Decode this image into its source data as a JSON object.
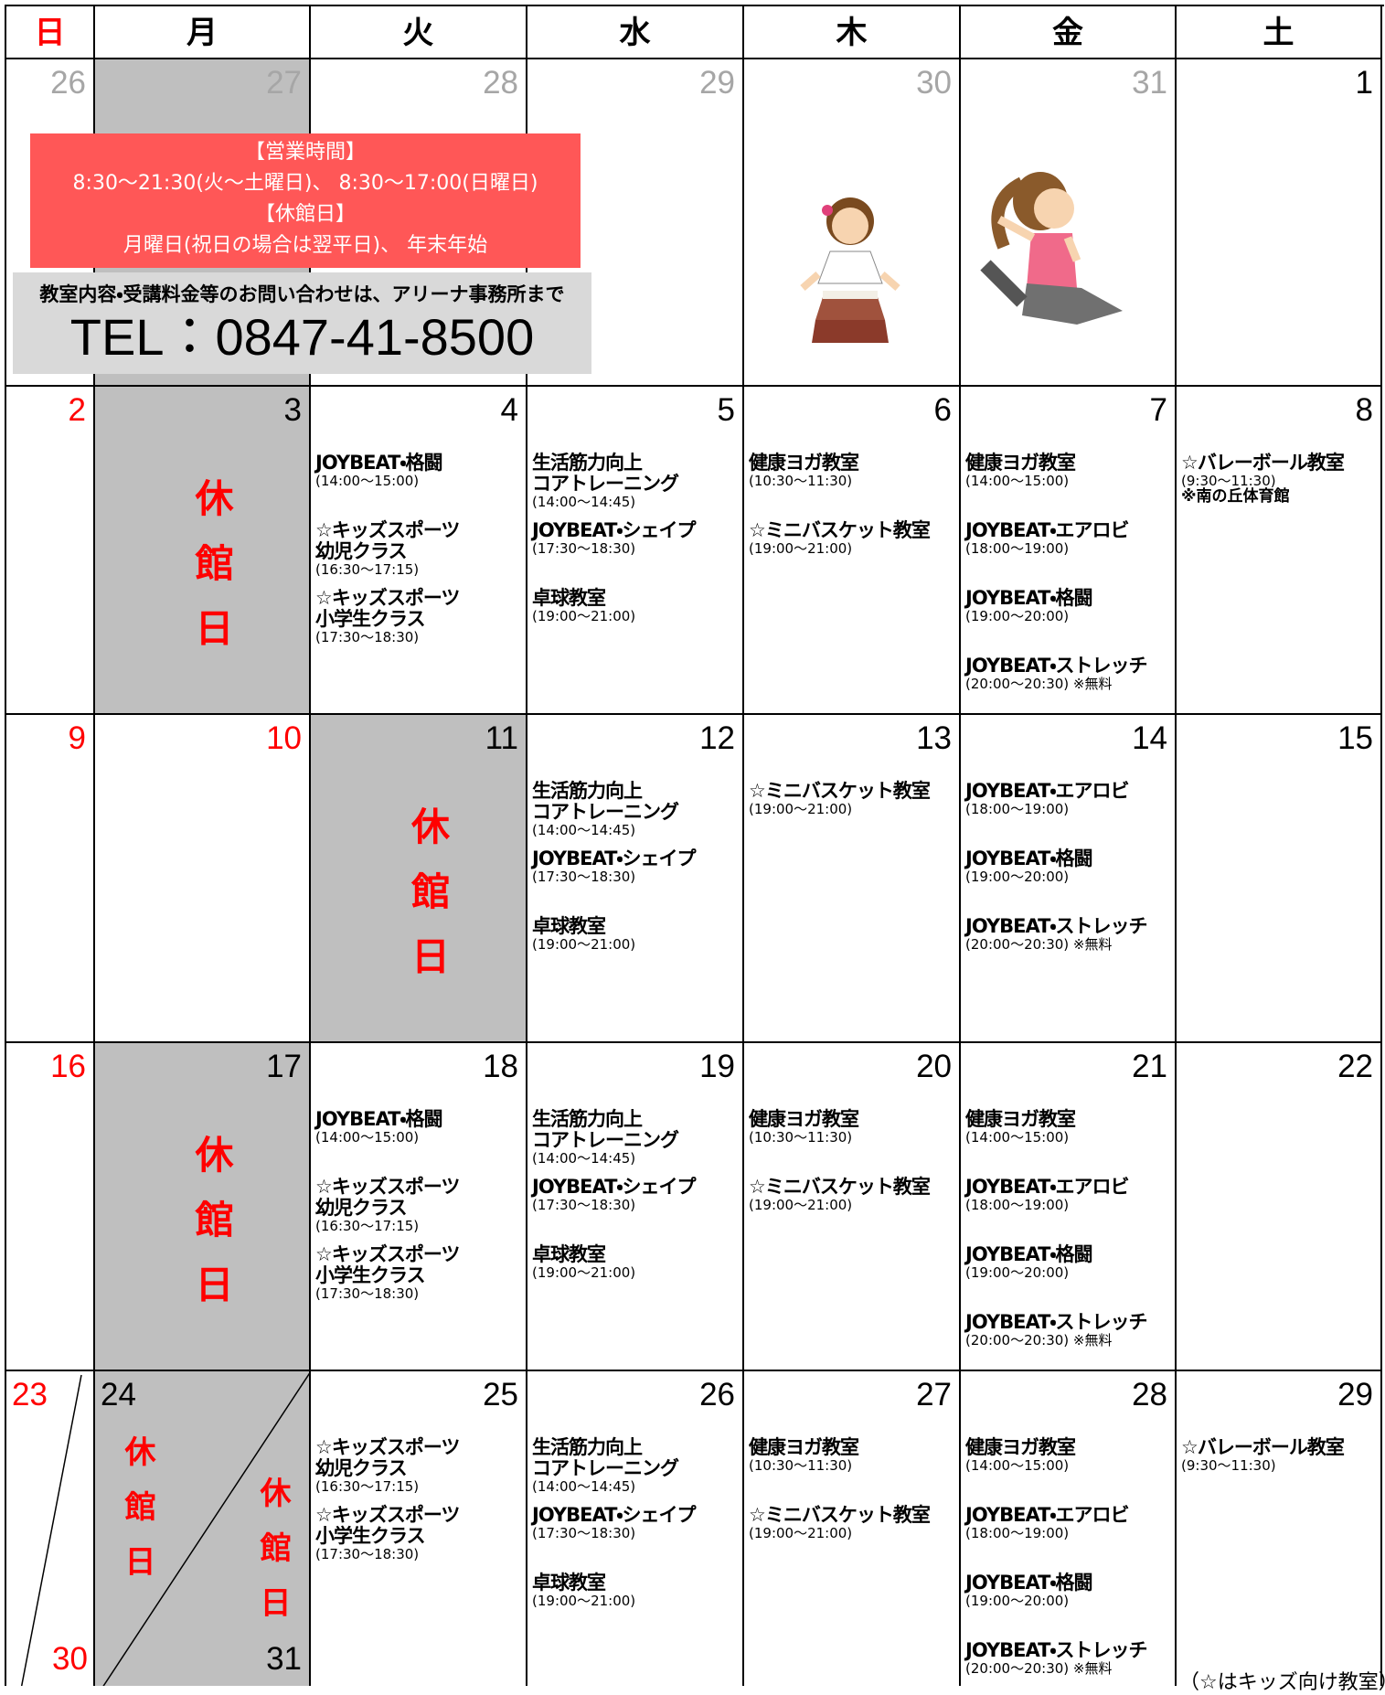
{
  "weekdays": [
    "日",
    "月",
    "火",
    "水",
    "木",
    "金",
    "土"
  ],
  "notice": {
    "hours_heading": "【営業時間】",
    "hours": "8:30～21:30(火～土曜日)、 8:30～17:00(日曜日)",
    "closed_heading": "【休館日】",
    "closed": "月曜日(祝日の場合は翌平日)、 年末年始",
    "inquiry": "教室内容・受講料金等のお問い合わせは、アリーナ事務所まで",
    "tel": "TEL：0847-41-8500"
  },
  "weeks": [
    {
      "days": [
        {
          "date": "26",
          "date_color": "#a6a6a6"
        },
        {
          "date": "27",
          "date_color": "#a6a6a6",
          "shaded": true
        },
        {
          "date": "28",
          "date_color": "#a6a6a6"
        },
        {
          "date": "29",
          "date_color": "#a6a6a6"
        },
        {
          "date": "30",
          "date_color": "#a6a6a6"
        },
        {
          "date": "31",
          "date_color": "#a6a6a6"
        },
        {
          "date": "1",
          "date_color": "#000000"
        }
      ]
    },
    {
      "days": [
        {
          "date": "2",
          "date_color": "#ff0000"
        },
        {
          "date": "3",
          "date_color": "#000000",
          "shaded": true,
          "closed_label": "休館日"
        },
        {
          "date": "4",
          "date_color": "#000000",
          "events": [
            {
              "name": [
                "JOYBEAT・格闘"
              ],
              "time": "(14:00～15:00)"
            },
            {
              "name": [
                "☆キッズスポーツ",
                "幼児クラス"
              ],
              "time": "(16:30～17:15)"
            },
            {
              "name": [
                "☆キッズスポーツ",
                "小学生クラス"
              ],
              "time": "(17:30～18:30)"
            }
          ]
        },
        {
          "date": "5",
          "date_color": "#000000",
          "events": [
            {
              "name": [
                "生活筋力向上",
                "コアトレーニング"
              ],
              "time": "(14:00～14:45)"
            },
            {
              "name": [
                "JOYBEAT・シェイプ"
              ],
              "time": "(17:30～18:30)"
            },
            {
              "name": [
                "卓球教室"
              ],
              "time": "(19:00～21:00)"
            }
          ]
        },
        {
          "date": "6",
          "date_color": "#000000",
          "events": [
            {
              "name": [
                "健康ヨガ教室"
              ],
              "time": "(10:30～11:30)"
            },
            {
              "name": [
                "☆ミニバスケット教室"
              ],
              "time": "(19:00～21:00)"
            }
          ]
        },
        {
          "date": "7",
          "date_color": "#000000",
          "events": [
            {
              "name": [
                "健康ヨガ教室"
              ],
              "time": "(14:00～15:00)"
            },
            {
              "name": [
                "JOYBEAT・エアロビ"
              ],
              "time": "(18:00～19:00)"
            },
            {
              "name": [
                "JOYBEAT・格闘"
              ],
              "time": "(19:00～20:00)"
            },
            {
              "name": [
                "JOYBEAT・ストレッチ"
              ],
              "time": "(20:00～20:30) ※無料"
            }
          ]
        },
        {
          "date": "8",
          "date_color": "#000000",
          "events": [
            {
              "name": [
                "☆バレーボール教室"
              ],
              "time": "(9:30～11:30)",
              "note": "※南の丘体育館"
            }
          ]
        }
      ]
    },
    {
      "days": [
        {
          "date": "9",
          "date_color": "#ff0000"
        },
        {
          "date": "10",
          "date_color": "#ff0000"
        },
        {
          "date": "11",
          "date_color": "#000000",
          "shaded": true,
          "closed_label": "休館日"
        },
        {
          "date": "12",
          "date_color": "#000000",
          "events": [
            {
              "name": [
                "生活筋力向上",
                "コアトレーニング"
              ],
              "time": "(14:00～14:45)"
            },
            {
              "name": [
                "JOYBEAT・シェイプ"
              ],
              "time": "(17:30～18:30)"
            },
            {
              "name": [
                "卓球教室"
              ],
              "time": "(19:00～21:00)"
            }
          ]
        },
        {
          "date": "13",
          "date_color": "#000000",
          "events": [
            {
              "name": [
                "☆ミニバスケット教室"
              ],
              "time": "(19:00～21:00)"
            }
          ]
        },
        {
          "date": "14",
          "date_color": "#000000",
          "events": [
            {
              "name": [
                "JOYBEAT・エアロビ"
              ],
              "time": "(18:00～19:00)"
            },
            {
              "name": [
                "JOYBEAT・格闘"
              ],
              "time": "(19:00～20:00)"
            },
            {
              "name": [
                "JOYBEAT・ストレッチ"
              ],
              "time": "(20:00～20:30) ※無料"
            }
          ]
        },
        {
          "date": "15",
          "date_color": "#000000"
        }
      ]
    },
    {
      "days": [
        {
          "date": "16",
          "date_color": "#ff0000"
        },
        {
          "date": "17",
          "date_color": "#000000",
          "shaded": true,
          "closed_label": "休館日"
        },
        {
          "date": "18",
          "date_color": "#000000",
          "events": [
            {
              "name": [
                "JOYBEAT・格闘"
              ],
              "time": "(14:00～15:00)"
            },
            {
              "name": [
                "☆キッズスポーツ",
                "幼児クラス"
              ],
              "time": "(16:30～17:15)"
            },
            {
              "name": [
                "☆キッズスポーツ",
                "小学生クラス"
              ],
              "time": "(17:30～18:30)"
            }
          ]
        },
        {
          "date": "19",
          "date_color": "#000000",
          "events": [
            {
              "name": [
                "生活筋力向上",
                "コアトレーニング"
              ],
              "time": "(14:00～14:45)"
            },
            {
              "name": [
                "JOYBEAT・シェイプ"
              ],
              "time": "(17:30～18:30)"
            },
            {
              "name": [
                "卓球教室"
              ],
              "time": "(19:00～21:00)"
            }
          ]
        },
        {
          "date": "20",
          "date_color": "#000000",
          "events": [
            {
              "name": [
                "健康ヨガ教室"
              ],
              "time": "(10:30～11:30)"
            },
            {
              "name": [
                "☆ミニバスケット教室"
              ],
              "time": "(19:00～21:00)"
            }
          ]
        },
        {
          "date": "21",
          "date_color": "#000000",
          "events": [
            {
              "name": [
                "健康ヨガ教室"
              ],
              "time": "(14:00～15:00)"
            },
            {
              "name": [
                "JOYBEAT・エアロビ"
              ],
              "time": "(18:00～19:00)"
            },
            {
              "name": [
                "JOYBEAT・格闘"
              ],
              "time": "(19:00～20:00)"
            },
            {
              "name": [
                "JOYBEAT・ストレッチ"
              ],
              "time": "(20:00～20:30) ※無料"
            }
          ]
        },
        {
          "date": "22",
          "date_color": "#000000"
        }
      ]
    },
    {
      "days": [
        {
          "dates": [
            "23",
            "30"
          ],
          "date_color": "#ff0000"
        },
        {
          "dates": [
            "24",
            "31"
          ],
          "date_color": "#000000",
          "shaded": true,
          "closed_labels": [
            "休館日",
            "休館日"
          ]
        },
        {
          "date": "25",
          "date_color": "#000000",
          "events": [
            {
              "name": [
                "☆キッズスポーツ",
                "幼児クラス"
              ],
              "time": "(16:30～17:15)"
            },
            {
              "name": [
                "☆キッズスポーツ",
                "小学生クラス"
              ],
              "time": "(17:30～18:30)"
            }
          ]
        },
        {
          "date": "26",
          "date_color": "#000000",
          "events": [
            {
              "name": [
                "生活筋力向上",
                "コアトレーニング"
              ],
              "time": "(14:00～14:45)"
            },
            {
              "name": [
                "JOYBEAT・シェイプ"
              ],
              "time": "(17:30～18:30)"
            },
            {
              "name": [
                "卓球教室"
              ],
              "time": "(19:00～21:00)"
            }
          ]
        },
        {
          "date": "27",
          "date_color": "#000000",
          "events": [
            {
              "name": [
                "健康ヨガ教室"
              ],
              "time": "(10:30～11:30)"
            },
            {
              "name": [
                "☆ミニバスケット教室"
              ],
              "time": "(19:00～21:00)"
            }
          ]
        },
        {
          "date": "28",
          "date_color": "#000000",
          "events": [
            {
              "name": [
                "健康ヨガ教室"
              ],
              "time": "(14:00～15:00)"
            },
            {
              "name": [
                "JOYBEAT・エアロビ"
              ],
              "time": "(18:00～19:00)"
            },
            {
              "name": [
                "JOYBEAT・格闘"
              ],
              "time": "(19:00～20:00)"
            },
            {
              "name": [
                "JOYBEAT・ストレッチ"
              ],
              "time": "(20:00～20:30) ※無料"
            }
          ]
        },
        {
          "date": "29",
          "date_color": "#000000",
          "events": [
            {
              "name": [
                "☆バレーボール教室"
              ],
              "time": "(9:30～11:30)"
            }
          ]
        }
      ]
    }
  ],
  "footnote": "（☆はキッズ向け教室）"
}
